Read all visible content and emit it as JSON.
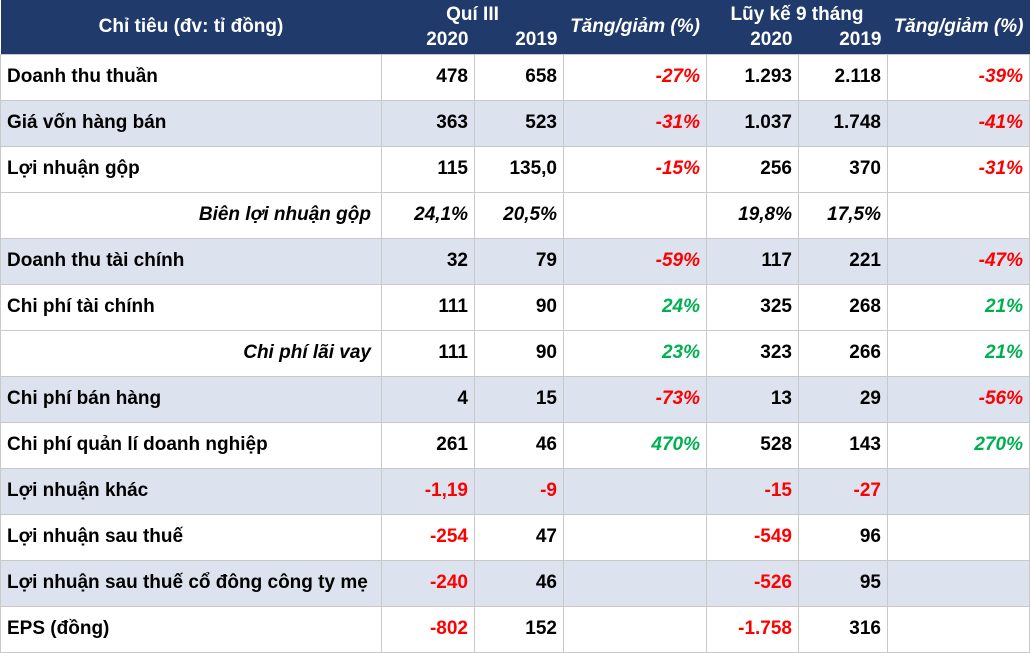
{
  "header": {
    "label": "Chỉ tiêu (đv: tỉ đồng)",
    "q3_title": "Quí III",
    "ytd_title": "Lũy kế 9 tháng",
    "year_2020": "2020",
    "year_2019": "2019",
    "change_label": "Tăng/giảm (%)"
  },
  "colors": {
    "header_bg": "#1f3a6b",
    "row_shade": "#dce3ef",
    "negative": "#ff0000",
    "positive": "#00b050"
  },
  "rows": [
    {
      "label": "Doanh thu thuần",
      "q20": "478",
      "q19": "658",
      "qchg": "-27%",
      "y20": "1.293",
      "y19": "2.118",
      "ychg": "-39%"
    },
    {
      "label": "Giá vốn hàng bán",
      "q20": "363",
      "q19": "523",
      "qchg": "-31%",
      "y20": "1.037",
      "y19": "1.748",
      "ychg": "-41%"
    },
    {
      "label": "Lợi nhuận gộp",
      "q20": "115",
      "q19": "135,0",
      "qchg": "-15%",
      "y20": "256",
      "y19": "370",
      "ychg": "-31%"
    },
    {
      "label": "Biên lợi nhuận gộp",
      "q20": "24,1%",
      "q19": "20,5%",
      "qchg": "",
      "y20": "19,8%",
      "y19": "17,5%",
      "ychg": ""
    },
    {
      "label": "Doanh thu tài chính",
      "q20": "32",
      "q19": "79",
      "qchg": "-59%",
      "y20": "117",
      "y19": "221",
      "ychg": "-47%"
    },
    {
      "label": "Chi phí tài chính",
      "q20": "111",
      "q19": "90",
      "qchg": "24%",
      "y20": "325",
      "y19": "268",
      "ychg": "21%"
    },
    {
      "label": "Chi phí lãi vay",
      "q20": "111",
      "q19": "90",
      "qchg": "23%",
      "y20": "323",
      "y19": "266",
      "ychg": "21%"
    },
    {
      "label": "Chi phí bán hàng",
      "q20": "4",
      "q19": "15",
      "qchg": "-73%",
      "y20": "13",
      "y19": "29",
      "ychg": "-56%"
    },
    {
      "label": "Chi phí quản lí doanh nghiệp",
      "q20": "261",
      "q19": "46",
      "qchg": "470%",
      "y20": "528",
      "y19": "143",
      "ychg": "270%"
    },
    {
      "label": "Lợi nhuận khác",
      "q20": "-1,19",
      "q19": "-9",
      "qchg": "",
      "y20": "-15",
      "y19": "-27",
      "ychg": ""
    },
    {
      "label": "Lợi nhuận sau thuế",
      "q20": "-254",
      "q19": "47",
      "qchg": "",
      "y20": "-549",
      "y19": "96",
      "ychg": ""
    },
    {
      "label": "Lợi nhuận sau thuế cổ đông công ty mẹ",
      "q20": "-240",
      "q19": "46",
      "qchg": "",
      "y20": "-526",
      "y19": "95",
      "ychg": ""
    },
    {
      "label": "EPS (đồng)",
      "q20": "-802",
      "q19": "152",
      "qchg": "",
      "y20": "-1.758",
      "y19": "316",
      "ychg": ""
    }
  ]
}
